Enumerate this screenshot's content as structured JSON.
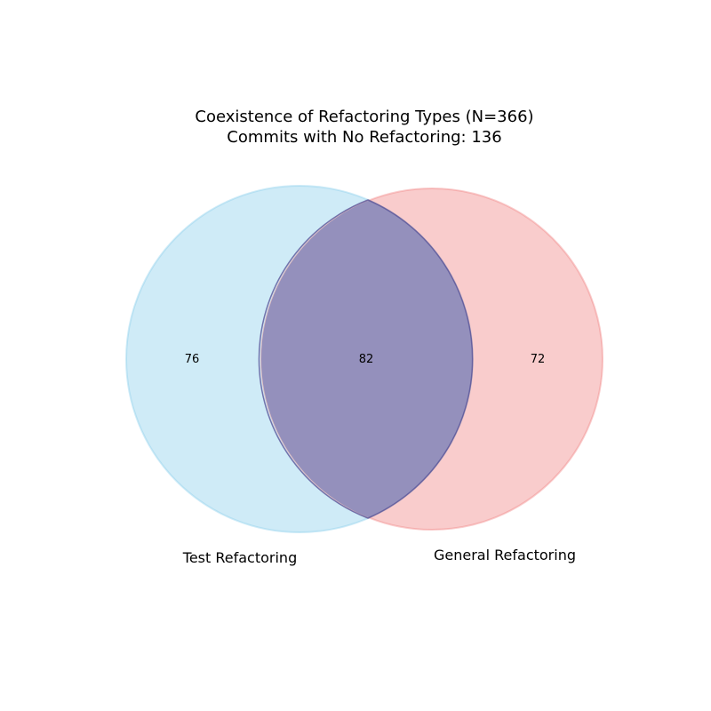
{
  "diagram": {
    "type": "venn",
    "title_lines": [
      "Coexistence of Refactoring Types (N=366)",
      "Commits with No Refactoring: 136"
    ],
    "sets": [
      {
        "label": "Test Refactoring",
        "only_count": "76",
        "color": "#87ceeb"
      },
      {
        "label": "General Refactoring",
        "only_count": "72",
        "color": "#f08080"
      }
    ],
    "intersection": {
      "count": "82",
      "color": "#9490bc",
      "edge_color": "#5a5599"
    }
  }
}
